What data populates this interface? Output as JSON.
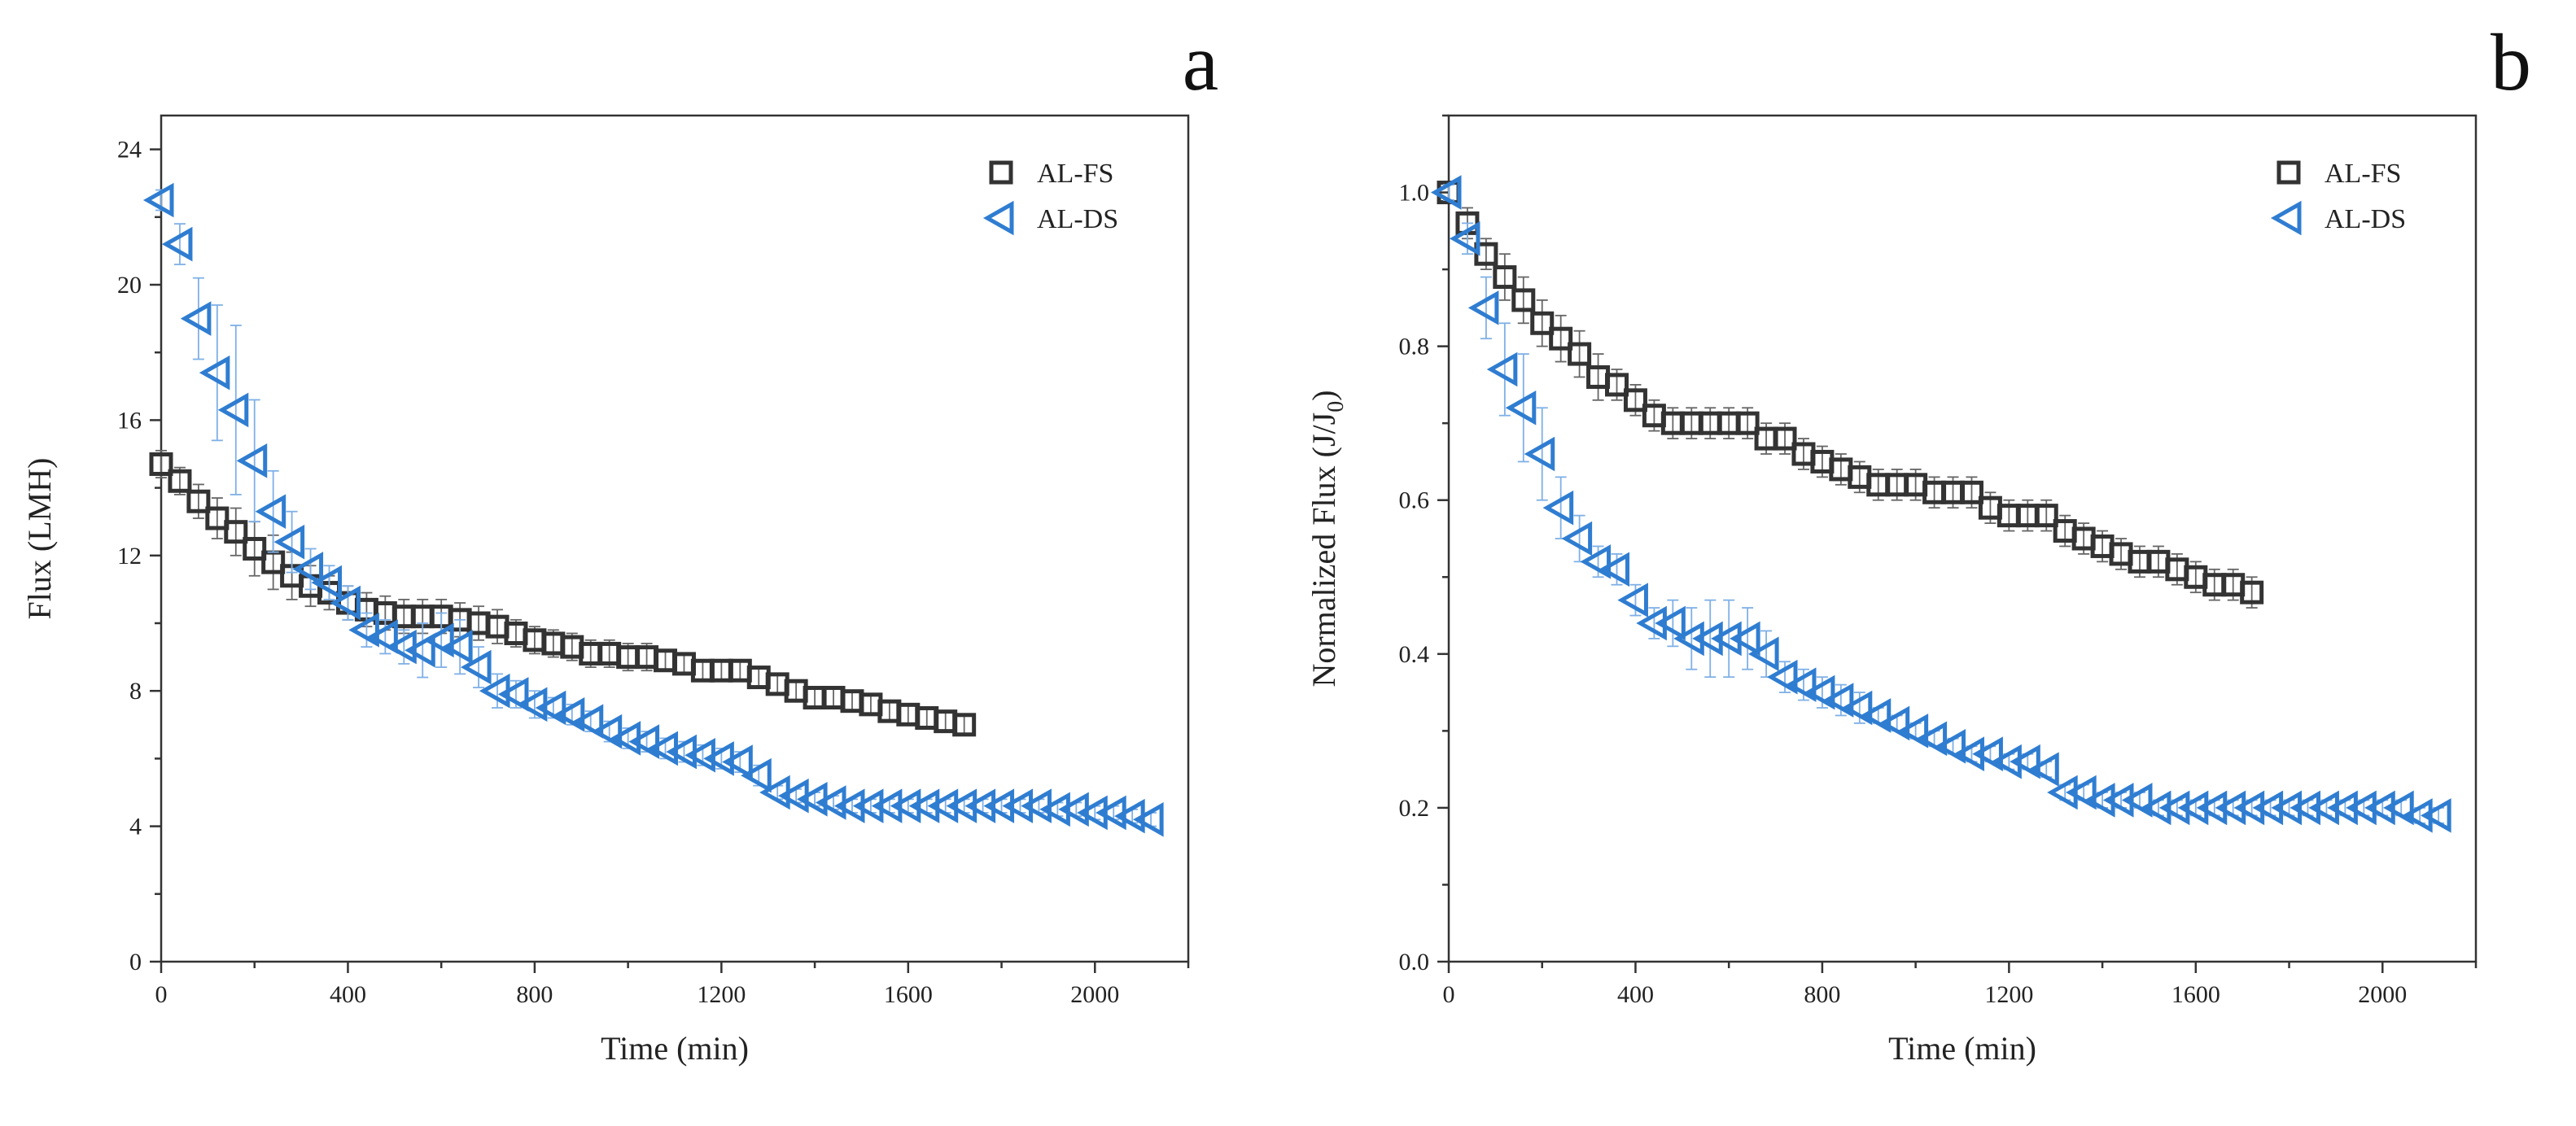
{
  "chart_data": [
    {
      "type": "scatter",
      "panel_label": "a",
      "xlabel": "Time (min)",
      "ylabel": "Flux (LMH)",
      "xlim": [
        0,
        2200
      ],
      "ylim": [
        0,
        25
      ],
      "xticks": [
        0,
        400,
        800,
        1200,
        1600,
        2000
      ],
      "yticks": [
        0,
        4,
        8,
        12,
        16,
        20,
        24
      ],
      "legend_position": "top-right",
      "series": [
        {
          "name": "AL-FS",
          "marker": "open-square",
          "color": "#333333",
          "x": [
            0,
            40,
            80,
            120,
            160,
            200,
            240,
            280,
            320,
            360,
            400,
            440,
            480,
            520,
            560,
            600,
            640,
            680,
            720,
            760,
            800,
            840,
            880,
            920,
            960,
            1000,
            1040,
            1080,
            1120,
            1160,
            1200,
            1240,
            1280,
            1320,
            1360,
            1400,
            1440,
            1480,
            1520,
            1560,
            1600,
            1640,
            1680,
            1720
          ],
          "y": [
            14.7,
            14.2,
            13.6,
            13.1,
            12.7,
            12.2,
            11.8,
            11.4,
            11.1,
            10.9,
            10.6,
            10.4,
            10.3,
            10.2,
            10.2,
            10.2,
            10.1,
            10.0,
            9.9,
            9.7,
            9.5,
            9.4,
            9.3,
            9.1,
            9.1,
            9.0,
            9.0,
            8.9,
            8.8,
            8.6,
            8.6,
            8.6,
            8.4,
            8.2,
            8.0,
            7.8,
            7.8,
            7.7,
            7.6,
            7.4,
            7.3,
            7.2,
            7.1,
            7.0
          ],
          "err": [
            0.4,
            0.4,
            0.5,
            0.6,
            0.7,
            0.8,
            0.8,
            0.7,
            0.6,
            0.5,
            0.5,
            0.5,
            0.5,
            0.5,
            0.5,
            0.5,
            0.5,
            0.5,
            0.5,
            0.4,
            0.4,
            0.4,
            0.4,
            0.4,
            0.4,
            0.4,
            0.4,
            0.3,
            0.3,
            0.3,
            0.3,
            0.3,
            0.3,
            0.3,
            0.3,
            0.3,
            0.3,
            0.3,
            0.3,
            0.3,
            0.3,
            0.3,
            0.3,
            0.3
          ]
        },
        {
          "name": "AL-DS",
          "marker": "open-left-triangle",
          "color": "#2f7dd1",
          "x": [
            0,
            40,
            80,
            120,
            160,
            200,
            240,
            280,
            320,
            360,
            400,
            440,
            480,
            520,
            560,
            600,
            640,
            680,
            720,
            760,
            800,
            840,
            880,
            920,
            960,
            1000,
            1040,
            1080,
            1120,
            1160,
            1200,
            1240,
            1280,
            1320,
            1360,
            1400,
            1440,
            1480,
            1520,
            1560,
            1600,
            1640,
            1680,
            1720,
            1760,
            1800,
            1840,
            1880,
            1920,
            1960,
            2000,
            2040,
            2080,
            2120
          ],
          "y": [
            22.5,
            21.2,
            19.0,
            17.4,
            16.3,
            14.8,
            13.3,
            12.4,
            11.6,
            11.2,
            10.6,
            9.8,
            9.6,
            9.3,
            9.2,
            9.5,
            9.3,
            8.7,
            8.0,
            7.9,
            7.6,
            7.5,
            7.3,
            7.1,
            6.8,
            6.6,
            6.5,
            6.3,
            6.2,
            6.1,
            6.0,
            5.9,
            5.5,
            5.0,
            4.9,
            4.8,
            4.7,
            4.6,
            4.6,
            4.6,
            4.6,
            4.6,
            4.6,
            4.6,
            4.6,
            4.6,
            4.6,
            4.6,
            4.5,
            4.5,
            4.4,
            4.4,
            4.3,
            4.2
          ],
          "err": [
            0.3,
            0.6,
            1.2,
            2.0,
            2.5,
            1.8,
            1.2,
            0.9,
            0.6,
            0.5,
            0.5,
            0.5,
            0.5,
            0.5,
            0.8,
            0.8,
            0.8,
            0.6,
            0.5,
            0.4,
            0.4,
            0.3,
            0.3,
            0.3,
            0.3,
            0.3,
            0.3,
            0.3,
            0.3,
            0.3,
            0.3,
            0.3,
            0.3,
            0.2,
            0.2,
            0.2,
            0.2,
            0.2,
            0.2,
            0.2,
            0.2,
            0.2,
            0.2,
            0.2,
            0.2,
            0.2,
            0.2,
            0.2,
            0.2,
            0.2,
            0.2,
            0.2,
            0.2,
            0.2
          ]
        }
      ]
    },
    {
      "type": "scatter",
      "panel_label": "b",
      "xlabel": "Time (min)",
      "ylabel": "Normalized Flux  (J/J",
      "ylabel_subscript": "0",
      "ylabel_suffix": ")",
      "xlim": [
        0,
        2200
      ],
      "ylim": [
        0,
        1.1
      ],
      "xticks": [
        0,
        400,
        800,
        1200,
        1600,
        2000
      ],
      "yticks": [
        0.0,
        0.2,
        0.4,
        0.6,
        0.8,
        1.0
      ],
      "ytick_labels": [
        "0.0",
        "0.2",
        "0.4",
        "0.6",
        "0.8",
        "1.0"
      ],
      "legend_position": "top-right",
      "series": [
        {
          "name": "AL-FS",
          "marker": "open-square",
          "color": "#333333",
          "x": [
            0,
            40,
            80,
            120,
            160,
            200,
            240,
            280,
            320,
            360,
            400,
            440,
            480,
            520,
            560,
            600,
            640,
            680,
            720,
            760,
            800,
            840,
            880,
            920,
            960,
            1000,
            1040,
            1080,
            1120,
            1160,
            1200,
            1240,
            1280,
            1320,
            1360,
            1400,
            1440,
            1480,
            1520,
            1560,
            1600,
            1640,
            1680,
            1720
          ],
          "y": [
            1.0,
            0.96,
            0.92,
            0.89,
            0.86,
            0.83,
            0.81,
            0.79,
            0.76,
            0.75,
            0.73,
            0.71,
            0.7,
            0.7,
            0.7,
            0.7,
            0.7,
            0.68,
            0.68,
            0.66,
            0.65,
            0.64,
            0.63,
            0.62,
            0.62,
            0.62,
            0.61,
            0.61,
            0.61,
            0.59,
            0.58,
            0.58,
            0.58,
            0.56,
            0.55,
            0.54,
            0.53,
            0.52,
            0.52,
            0.51,
            0.5,
            0.49,
            0.49,
            0.48
          ],
          "err": [
            0.01,
            0.02,
            0.02,
            0.03,
            0.03,
            0.03,
            0.03,
            0.03,
            0.03,
            0.02,
            0.02,
            0.02,
            0.02,
            0.02,
            0.02,
            0.02,
            0.02,
            0.02,
            0.02,
            0.02,
            0.02,
            0.02,
            0.02,
            0.02,
            0.02,
            0.02,
            0.02,
            0.02,
            0.02,
            0.02,
            0.02,
            0.02,
            0.02,
            0.02,
            0.02,
            0.02,
            0.02,
            0.02,
            0.02,
            0.02,
            0.02,
            0.02,
            0.02,
            0.02
          ]
        },
        {
          "name": "AL-DS",
          "marker": "open-left-triangle",
          "color": "#2f7dd1",
          "x": [
            0,
            40,
            80,
            120,
            160,
            200,
            240,
            280,
            320,
            360,
            400,
            440,
            480,
            520,
            560,
            600,
            640,
            680,
            720,
            760,
            800,
            840,
            880,
            920,
            960,
            1000,
            1040,
            1080,
            1120,
            1160,
            1200,
            1240,
            1280,
            1320,
            1360,
            1400,
            1440,
            1480,
            1520,
            1560,
            1600,
            1640,
            1680,
            1720,
            1760,
            1800,
            1840,
            1880,
            1920,
            1960,
            2000,
            2040,
            2080,
            2120
          ],
          "y": [
            1.0,
            0.94,
            0.85,
            0.77,
            0.72,
            0.66,
            0.59,
            0.55,
            0.52,
            0.51,
            0.47,
            0.44,
            0.44,
            0.42,
            0.42,
            0.42,
            0.42,
            0.4,
            0.37,
            0.36,
            0.35,
            0.34,
            0.33,
            0.32,
            0.31,
            0.3,
            0.29,
            0.28,
            0.27,
            0.27,
            0.26,
            0.26,
            0.25,
            0.22,
            0.22,
            0.21,
            0.21,
            0.21,
            0.2,
            0.2,
            0.2,
            0.2,
            0.2,
            0.2,
            0.2,
            0.2,
            0.2,
            0.2,
            0.2,
            0.2,
            0.2,
            0.2,
            0.19,
            0.19
          ],
          "err": [
            0.01,
            0.02,
            0.04,
            0.06,
            0.07,
            0.06,
            0.04,
            0.03,
            0.02,
            0.02,
            0.02,
            0.02,
            0.03,
            0.04,
            0.05,
            0.05,
            0.04,
            0.03,
            0.02,
            0.02,
            0.02,
            0.02,
            0.02,
            0.01,
            0.01,
            0.01,
            0.01,
            0.01,
            0.01,
            0.01,
            0.01,
            0.01,
            0.01,
            0.01,
            0.01,
            0.01,
            0.01,
            0.01,
            0.01,
            0.01,
            0.01,
            0.01,
            0.01,
            0.01,
            0.01,
            0.01,
            0.01,
            0.01,
            0.01,
            0.01,
            0.01,
            0.01,
            0.01,
            0.01
          ]
        }
      ]
    }
  ]
}
